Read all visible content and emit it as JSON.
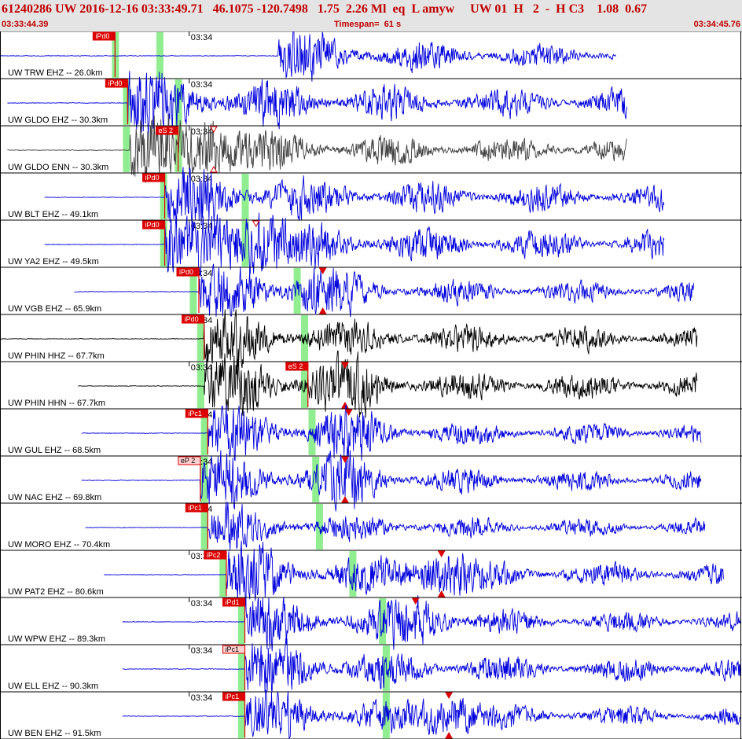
{
  "header": {
    "title": "61240286 UW 2016-12-16 03:33:49.71   46.1075 -120.7498   1.75  2.26 Ml  eq  L amyw     UW 01  H   2  -  H C3    1.08  0.67",
    "start_time": "03:33:44.39",
    "timespan": "Timespan=  61 s",
    "end_time": "03:34:45.76"
  },
  "colors": {
    "trace_blue": "#0000dd",
    "trace_black": "#000000",
    "trace_gray": "#404040",
    "pick_red": "#dd0000",
    "window_green": "#90ee90",
    "header_red": "#c00000"
  },
  "chart_data": {
    "type": "seismogram",
    "time_axis": {
      "start": "03:33:44.39",
      "end": "03:34:45.76",
      "span_s": 61,
      "minute_tick_label": "03:34"
    },
    "traces": [
      {
        "label": "UW TRW EHZ -- 26.0km",
        "color": "blue",
        "start": 0.0,
        "end": 0.83,
        "onset": 0.375,
        "pick": {
          "label": "iPd0",
          "t": 0.155,
          "style": "solid"
        },
        "green": [
          0.155,
          0.215
        ],
        "tick": 0.255,
        "markers": [],
        "amp": 0.35,
        "scale": 0.75
      },
      {
        "label": "UW GLDO EHZ -- 30.3km",
        "color": "blue",
        "start": 0.01,
        "end": 0.845,
        "onset": 0.172,
        "pick": {
          "label": "iPd0",
          "t": 0.172,
          "style": "solid"
        },
        "green": [
          0.17,
          0.24
        ],
        "tick": 0.255,
        "markers": [],
        "amp": 0.5,
        "scale": 0.7
      },
      {
        "label": "UW GLDO ENN -- 30.3km",
        "color": "gray",
        "start": 0.01,
        "end": 0.845,
        "onset": 0.175,
        "pick": {
          "label": "eS 2",
          "t": 0.24,
          "style": "solid"
        },
        "green": [
          0.17,
          0.24
        ],
        "tick": 0.255,
        "markers": [
          {
            "t": 0.288,
            "top": true,
            "bottom": true,
            "hollow": true
          }
        ],
        "amp": 0.45,
        "scale": 0.75
      },
      {
        "label": "UW BLT EHZ -- 49.1km",
        "color": "blue",
        "start": 0.06,
        "end": 0.895,
        "onset": 0.222,
        "pick": {
          "label": "iPd0",
          "t": 0.222,
          "style": "solid"
        },
        "green": [
          0.22,
          0.33
        ],
        "tick": 0.255,
        "markers": [],
        "amp": 0.45,
        "scale": 0.55
      },
      {
        "label": "UW YA2 EHZ -- 49.5km",
        "color": "blue",
        "start": 0.06,
        "end": 0.895,
        "onset": 0.222,
        "pick": {
          "label": "iPd0",
          "t": 0.222,
          "style": "solid"
        },
        "green": [
          0.22,
          0.33
        ],
        "tick": 0.255,
        "markers": [
          {
            "t": 0.345,
            "top": true,
            "bottom": false,
            "hollow": true
          }
        ],
        "amp": 0.5,
        "scale": 0.55
      },
      {
        "label": "UW VGB EHZ -- 65.9km",
        "color": "blue",
        "start": 0.1,
        "end": 0.935,
        "onset": 0.268,
        "pick": {
          "label": "iPd0",
          "t": 0.268,
          "style": "solid"
        },
        "green": [
          0.26,
          0.4
        ],
        "tick": 0.255,
        "markers": [
          {
            "t": 0.435,
            "top": true,
            "bottom": true,
            "hollow": false
          }
        ],
        "amp": 0.35,
        "scale": 0.5
      },
      {
        "label": "UW PHIN HHZ -- 67.7km",
        "color": "black",
        "start": 0.0,
        "end": 0.94,
        "onset": 0.275,
        "pick": {
          "label": "iPd0",
          "t": 0.275,
          "style": "solid"
        },
        "green": [
          0.27,
          0.41
        ],
        "tick": 0.255,
        "markers": [],
        "amp": 0.4,
        "scale": 0.5
      },
      {
        "label": "UW PHIN HHN -- 67.7km",
        "color": "black",
        "start": 0.105,
        "end": 0.94,
        "onset": 0.275,
        "pick": {
          "label": "eS 2",
          "t": 0.415,
          "style": "solid"
        },
        "green": [
          0.27,
          0.41
        ],
        "tick": 0.255,
        "markers": [
          {
            "t": 0.465,
            "top": true,
            "bottom": true,
            "hollow": false
          }
        ],
        "amp": 0.45,
        "scale": 0.55
      },
      {
        "label": "UW GUL EHZ -- 68.5km",
        "color": "blue",
        "start": 0.11,
        "end": 0.945,
        "onset": 0.28,
        "pick": {
          "label": "iPc1",
          "t": 0.28,
          "style": "solid"
        },
        "green": [
          0.275,
          0.42
        ],
        "tick": 0.255,
        "markers": [
          {
            "t": 0.47,
            "top": true,
            "bottom": false,
            "hollow": false
          }
        ],
        "amp": 0.35,
        "scale": 0.5
      },
      {
        "label": "UW NAC EHZ -- 69.8km",
        "color": "blue",
        "start": 0.11,
        "end": 0.945,
        "onset": 0.27,
        "pick": {
          "label": "eP 2",
          "t": 0.27,
          "style": "hollow"
        },
        "green": [
          0.275,
          0.425
        ],
        "tick": 0.255,
        "markers": [
          {
            "t": 0.465,
            "top": true,
            "bottom": true,
            "hollow": false
          }
        ],
        "amp": 0.35,
        "scale": 0.55
      },
      {
        "label": "UW MORO EHZ -- 70.4km",
        "color": "blue",
        "start": 0.115,
        "end": 0.95,
        "onset": 0.28,
        "pick": {
          "label": "iPc1",
          "t": 0.28,
          "style": "solid"
        },
        "green": [
          0.275,
          0.43
        ],
        "tick": 0.255,
        "markers": [],
        "amp": 0.3,
        "scale": 0.5
      },
      {
        "label": "UW PAT2 EHZ -- 80.6km",
        "color": "blue",
        "start": 0.14,
        "end": 0.975,
        "onset": 0.305,
        "pick": {
          "label": "iPc2",
          "t": 0.305,
          "style": "solid"
        },
        "green": [
          0.3,
          0.475
        ],
        "tick": 0.255,
        "markers": [
          {
            "t": 0.595,
            "top": true,
            "bottom": true,
            "hollow": false
          }
        ],
        "amp": 0.4,
        "scale": 0.55
      },
      {
        "label": "UW WPW EHZ -- 89.3km",
        "color": "blue",
        "start": 0.165,
        "end": 1.0,
        "onset": 0.33,
        "pick": {
          "label": "iPd1",
          "t": 0.33,
          "style": "solid"
        },
        "green": [
          0.325,
          0.515
        ],
        "tick": 0.255,
        "markers": [
          {
            "t": 0.56,
            "top": true,
            "bottom": false,
            "hollow": false
          }
        ],
        "amp": 0.35,
        "scale": 0.5
      },
      {
        "label": "UW ELL EHZ -- 90.3km",
        "color": "blue",
        "start": 0.165,
        "end": 1.0,
        "onset": 0.33,
        "pick": {
          "label": "iPc1",
          "t": 0.33,
          "style": "hollow"
        },
        "green": [
          0.325,
          0.52
        ],
        "tick": 0.255,
        "markers": [],
        "amp": 0.4,
        "scale": 0.5
      },
      {
        "label": "UW BEN EHZ -- 91.5km",
        "color": "blue",
        "start": 0.165,
        "end": 1.0,
        "onset": 0.33,
        "pick": {
          "label": "iPc1",
          "t": 0.33,
          "style": "solid"
        },
        "green": [
          0.325,
          0.52
        ],
        "tick": 0.255,
        "markers": [
          {
            "t": 0.605,
            "top": true,
            "bottom": true,
            "hollow": false
          }
        ],
        "amp": 0.35,
        "scale": 0.55
      }
    ]
  }
}
